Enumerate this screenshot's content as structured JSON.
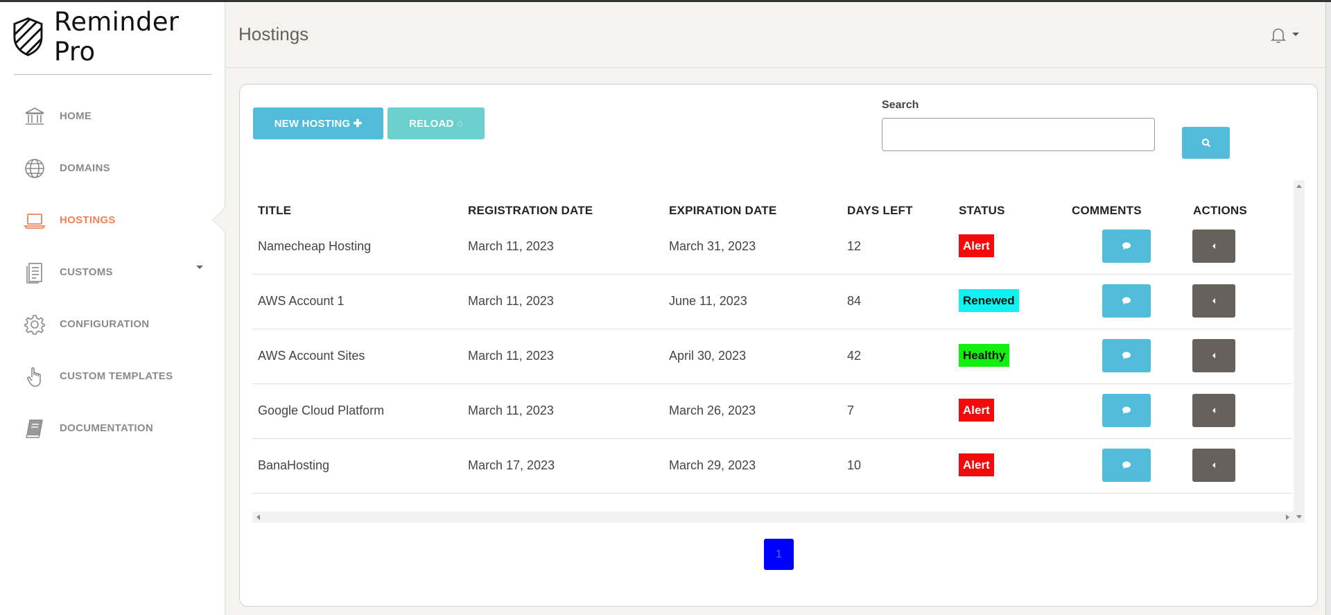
{
  "brand": {
    "name": "Reminder Pro"
  },
  "sidebar": {
    "items": [
      {
        "label": "HOME",
        "icon": "bank-icon"
      },
      {
        "label": "DOMAINS",
        "icon": "globe-icon"
      },
      {
        "label": "HOSTINGS",
        "icon": "laptop-icon",
        "active": true
      },
      {
        "label": "CUSTOMS",
        "icon": "document-icon",
        "has_submenu": true
      },
      {
        "label": "CONFIGURATION",
        "icon": "gear-icon"
      },
      {
        "label": "CUSTOM TEMPLATES",
        "icon": "pointer-hand-icon"
      },
      {
        "label": "DOCUMENTATION",
        "icon": "book-icon"
      }
    ]
  },
  "header": {
    "title": "Hostings",
    "notification_icon": "bell-icon"
  },
  "toolbar": {
    "new_label": "NEW HOSTING ✚",
    "reload_label": "RELOAD ◌",
    "search_label": "Search",
    "search_value": ""
  },
  "table": {
    "columns": [
      "TITLE",
      "REGISTRATION DATE",
      "EXPIRATION DATE",
      "DAYS LEFT",
      "STATUS",
      "COMMENTS",
      "ACTIONS"
    ],
    "rows": [
      {
        "title": "Namecheap Hosting",
        "registration": "March 11, 2023",
        "expiration": "March 31, 2023",
        "days_left": "12",
        "status": "Alert"
      },
      {
        "title": "AWS Account 1",
        "registration": "March 11, 2023",
        "expiration": "June 11, 2023",
        "days_left": "84",
        "status": "Renewed"
      },
      {
        "title": "AWS Account Sites",
        "registration": "March 11, 2023",
        "expiration": "April 30, 2023",
        "days_left": "42",
        "status": "Healthy"
      },
      {
        "title": "Google Cloud Platform",
        "registration": "March 11, 2023",
        "expiration": "March 26, 2023",
        "days_left": "7",
        "status": "Alert"
      },
      {
        "title": "BanaHosting",
        "registration": "March 17, 2023",
        "expiration": "March 29, 2023",
        "days_left": "10",
        "status": "Alert"
      }
    ]
  },
  "pagination": {
    "current": "1"
  },
  "colors": {
    "accent": "#51bcda",
    "active_nav": "#ef8157",
    "alert": "#f30b0b",
    "renewed": "#0ef3f0",
    "healthy": "#13f00f",
    "action": "#66615b",
    "page_active": "#0000ff"
  }
}
